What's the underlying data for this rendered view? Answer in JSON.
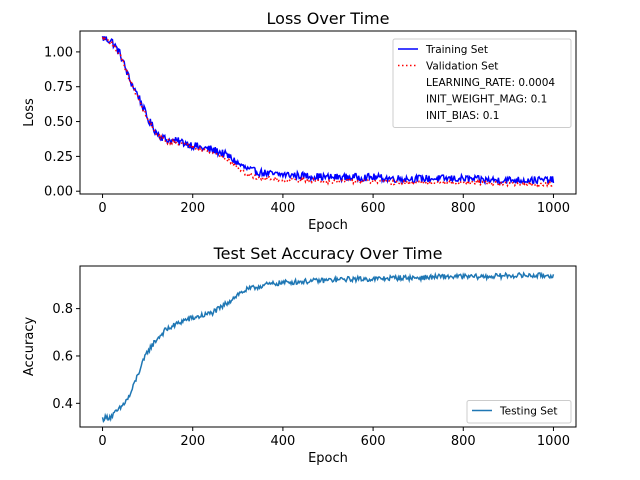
{
  "chart_data": [
    {
      "type": "line",
      "title": "Loss Over Time",
      "xlabel": "Epoch",
      "ylabel": "Loss",
      "xlim": [
        -50,
        1050
      ],
      "ylim": [
        -0.02,
        1.15
      ],
      "xticks": [
        "0",
        "200",
        "400",
        "600",
        "800",
        "1000"
      ],
      "xtick_values": [
        0,
        200,
        400,
        600,
        800,
        1000
      ],
      "yticks": [
        "0.00",
        "0.25",
        "0.50",
        "0.75",
        "1.00"
      ],
      "ytick_values": [
        0,
        0.25,
        0.5,
        0.75,
        1.0
      ],
      "legend_position": "top-right",
      "legend_notes": [
        "LEARNING_RATE: 0.0004",
        "INIT_WEIGHT_MAG: 0.1",
        "INIT_BIAS: 0.1"
      ],
      "series": [
        {
          "name": "Training Set",
          "color": "#0000ff",
          "style": "solid",
          "x": [
            0,
            20,
            40,
            60,
            80,
            100,
            120,
            140,
            160,
            180,
            200,
            220,
            240,
            260,
            280,
            300,
            320,
            340,
            360,
            380,
            400,
            450,
            500,
            550,
            600,
            650,
            700,
            750,
            800,
            850,
            900,
            950,
            1000
          ],
          "y": [
            1.1,
            1.08,
            0.98,
            0.8,
            0.68,
            0.52,
            0.42,
            0.37,
            0.36,
            0.35,
            0.33,
            0.31,
            0.3,
            0.28,
            0.25,
            0.2,
            0.16,
            0.14,
            0.13,
            0.12,
            0.12,
            0.11,
            0.1,
            0.1,
            0.1,
            0.09,
            0.09,
            0.09,
            0.09,
            0.08,
            0.08,
            0.08,
            0.08
          ],
          "noise": 0.03
        },
        {
          "name": "Validation Set",
          "color": "#ff0000",
          "style": "dotted",
          "x": [
            0,
            20,
            40,
            60,
            80,
            100,
            120,
            140,
            160,
            180,
            200,
            220,
            240,
            260,
            280,
            300,
            320,
            340,
            360,
            380,
            400,
            450,
            500,
            550,
            600,
            650,
            700,
            750,
            800,
            850,
            900,
            950,
            1000
          ],
          "y": [
            1.1,
            1.07,
            0.97,
            0.8,
            0.66,
            0.52,
            0.4,
            0.36,
            0.35,
            0.34,
            0.32,
            0.3,
            0.28,
            0.26,
            0.22,
            0.17,
            0.12,
            0.1,
            0.09,
            0.09,
            0.08,
            0.08,
            0.07,
            0.07,
            0.07,
            0.06,
            0.06,
            0.06,
            0.06,
            0.06,
            0.05,
            0.05,
            0.05
          ],
          "noise": 0.015
        }
      ]
    },
    {
      "type": "line",
      "title": "Test Set Accuracy Over Time",
      "xlabel": "Epoch",
      "ylabel": "Accuracy",
      "xlim": [
        -50,
        1050
      ],
      "ylim": [
        0.3,
        0.98
      ],
      "xticks": [
        "0",
        "200",
        "400",
        "600",
        "800",
        "1000"
      ],
      "xtick_values": [
        0,
        200,
        400,
        600,
        800,
        1000
      ],
      "yticks": [
        "0.4",
        "0.6",
        "0.8"
      ],
      "ytick_values": [
        0.4,
        0.6,
        0.8
      ],
      "legend_position": "lower-right",
      "series": [
        {
          "name": "Testing Set",
          "color": "#1f77b4",
          "style": "solid",
          "x": [
            0,
            20,
            40,
            60,
            80,
            100,
            120,
            140,
            160,
            180,
            200,
            220,
            240,
            260,
            280,
            300,
            320,
            340,
            360,
            380,
            400,
            450,
            500,
            550,
            600,
            650,
            700,
            750,
            800,
            850,
            900,
            950,
            1000
          ],
          "y": [
            0.335,
            0.345,
            0.38,
            0.43,
            0.53,
            0.62,
            0.67,
            0.71,
            0.73,
            0.75,
            0.76,
            0.77,
            0.78,
            0.8,
            0.83,
            0.86,
            0.88,
            0.89,
            0.9,
            0.905,
            0.91,
            0.915,
            0.92,
            0.925,
            0.925,
            0.93,
            0.93,
            0.935,
            0.935,
            0.935,
            0.94,
            0.94,
            0.94
          ],
          "noise": 0.012
        }
      ]
    }
  ]
}
